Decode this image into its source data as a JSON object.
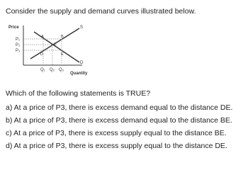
{
  "question": {
    "intro": "Consider the supply and demand curves illustrated below.",
    "prompt": "Which of the following statements is TRUE?",
    "options": [
      "a) At a price of P3, there is excess demand equal to the distance DE.",
      "b) At a price of P3, there is excess demand equal to the distance BE.",
      "c) At a price of P3, there is excess supply equal to the distance BE.",
      "d) At a price of P3, there is excess supply equal to the distance DE."
    ]
  },
  "diagram": {
    "y_axis_label": "Price",
    "x_axis_label": "Quantity",
    "price_labels": [
      "P₁",
      "P₂",
      "P₃"
    ],
    "quantity_labels": [
      "Q₁",
      "Q₂",
      "Q₃"
    ],
    "supply_label": "S",
    "demand_label": "D",
    "point_labels": [
      "A",
      "B",
      "C",
      "D",
      "E"
    ]
  }
}
